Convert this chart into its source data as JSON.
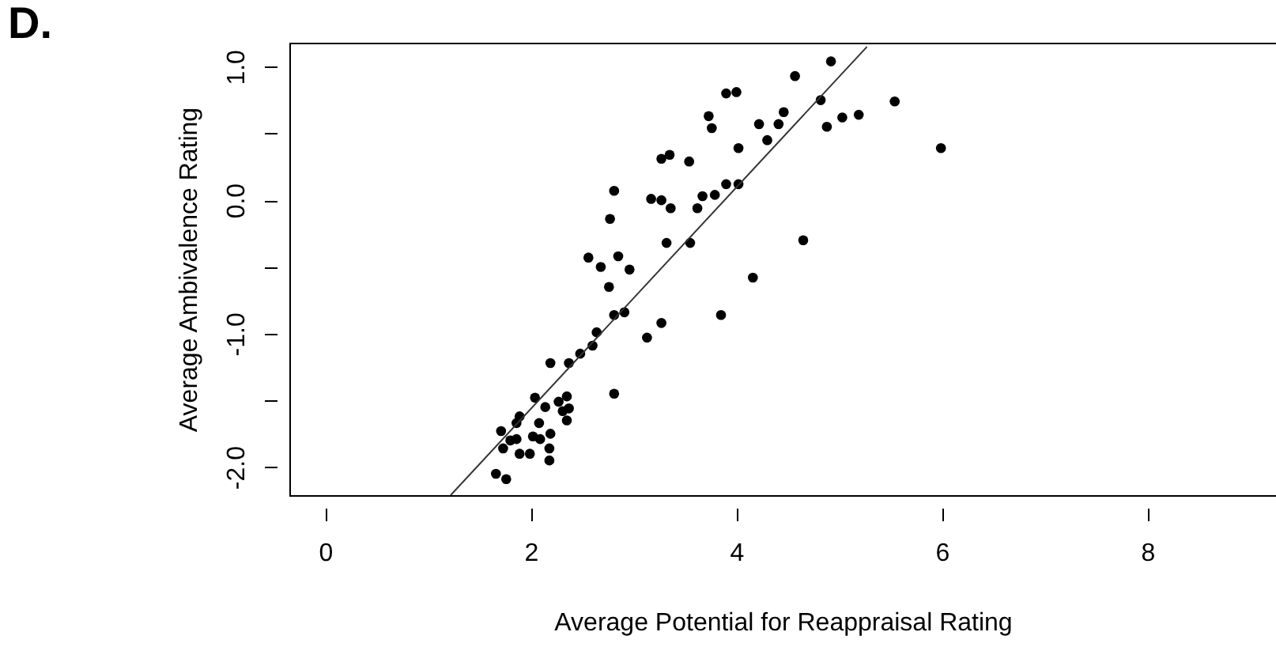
{
  "chart_data": {
    "type": "scatter",
    "title": "D.",
    "xlabel": "Average Potential for Reappraisal Rating",
    "ylabel": "Average Ambivalence Rating",
    "xlim": [
      -0.35,
      9.25
    ],
    "xticks": [
      0,
      2,
      4,
      6,
      8
    ],
    "ylim": [
      -2.21,
      1.18
    ],
    "yticks": [
      {
        "value": -2,
        "label": "-2.0"
      },
      {
        "value": -1.5,
        "label": null
      },
      {
        "value": -1,
        "label": "-1.0"
      },
      {
        "value": -0.5,
        "label": null
      },
      {
        "value": 0,
        "label": "0.0"
      },
      {
        "value": 0.5,
        "label": null
      },
      {
        "value": 1,
        "label": "1.0"
      }
    ],
    "grid": false,
    "series": [
      {
        "marker": "circle",
        "color": "#000000",
        "x": [
          1.66,
          1.76,
          1.71,
          1.73,
          1.8,
          1.86,
          1.89,
          1.99,
          1.86,
          1.89,
          2.04,
          2.02,
          2.08,
          2.09,
          2.14,
          2.19,
          2.18,
          2.18,
          2.27,
          2.35,
          2.31,
          2.37,
          2.35,
          2.19,
          2.37,
          2.48,
          2.6,
          2.64,
          2.81,
          2.81,
          2.91,
          3.13,
          3.27,
          2.56,
          2.68,
          2.76,
          2.85,
          2.96,
          2.77,
          2.81,
          3.17,
          3.27,
          3.36,
          3.32,
          3.27,
          3.35,
          3.54,
          3.55,
          3.62,
          3.67,
          3.79,
          3.73,
          3.76,
          3.9,
          4.0,
          4.02,
          3.9,
          4.02,
          3.85,
          4.16,
          4.22,
          4.3,
          4.41,
          4.46,
          4.57,
          4.65,
          4.82,
          4.88,
          4.92,
          5.03,
          5.19,
          5.54,
          5.99
        ],
        "values": [
          -2.05,
          -2.09,
          -1.73,
          -1.86,
          -1.8,
          -1.79,
          -1.9,
          -1.9,
          -1.67,
          -1.62,
          -1.48,
          -1.77,
          -1.67,
          -1.79,
          -1.55,
          -1.75,
          -1.86,
          -1.95,
          -1.51,
          -1.47,
          -1.58,
          -1.56,
          -1.65,
          -1.22,
          -1.22,
          -1.15,
          -1.09,
          -0.99,
          -1.45,
          -0.86,
          -0.84,
          -1.03,
          -0.92,
          -0.43,
          -0.5,
          -0.65,
          -0.42,
          -0.52,
          -0.14,
          0.07,
          0.01,
          0.0,
          -0.06,
          -0.32,
          0.31,
          0.34,
          0.29,
          -0.32,
          -0.06,
          0.03,
          0.04,
          0.63,
          0.54,
          0.8,
          0.81,
          0.39,
          0.12,
          0.12,
          -0.86,
          -0.58,
          0.57,
          0.45,
          0.57,
          0.66,
          0.93,
          -0.3,
          0.75,
          0.55,
          1.04,
          0.62,
          0.64,
          0.74,
          0.39
        ]
      },
      {
        "type": "line",
        "marker": "none",
        "color": "#333333",
        "x": [
          1.22,
          5.27
        ],
        "values": [
          -2.21,
          1.15
        ]
      }
    ]
  }
}
